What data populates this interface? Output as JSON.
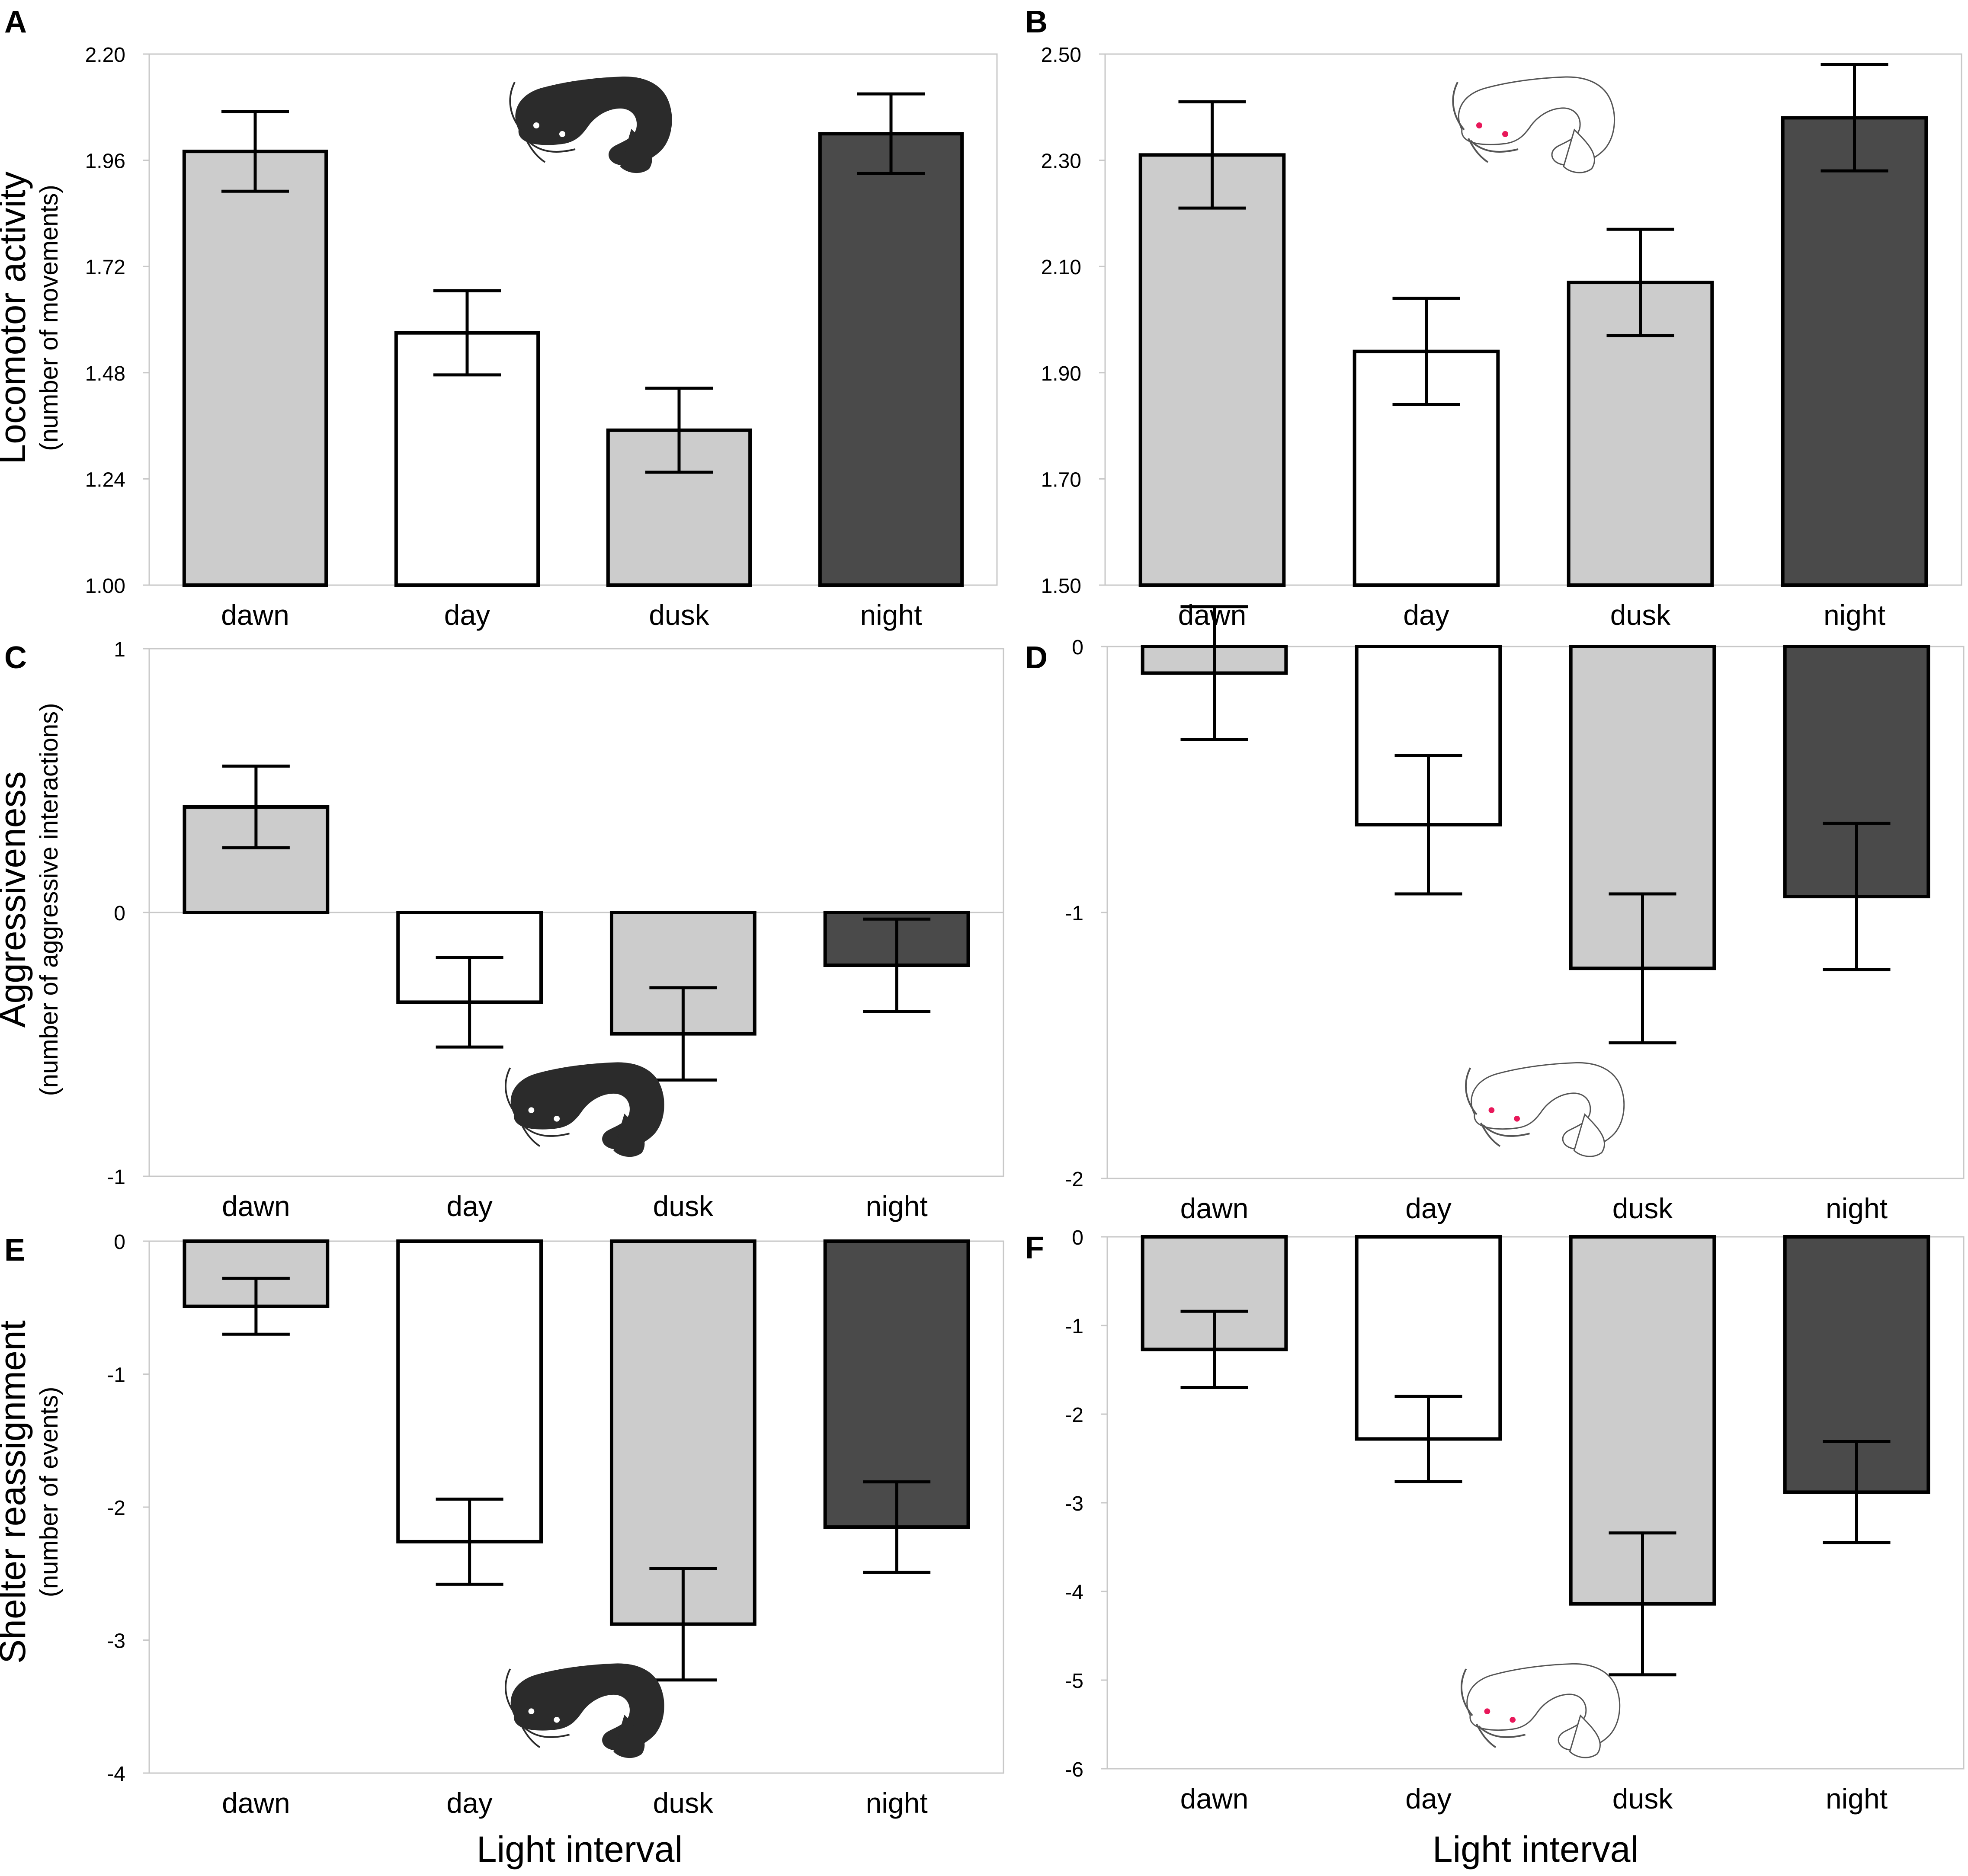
{
  "figure": {
    "shared_xlabel": "Light interval",
    "row_ylabels": [
      {
        "main": "Locomotor activity",
        "sub": "(number of movements)"
      },
      {
        "main": "Aggressiveness",
        "sub": "(number of aggressive interactions)"
      },
      {
        "main": "Shelter reassignment",
        "sub": "(number of events)"
      }
    ]
  },
  "colors": {
    "dawn": "#cccccc",
    "day": "#ffffff",
    "dusk": "#cccccc",
    "night": "#4a4a4a",
    "axis_frame": "#c8c8c8",
    "albino_eye": "#e8185a",
    "fish_dark": "#2b2b2b"
  },
  "chart_data": [
    {
      "panel": "A",
      "type": "bar",
      "categories": [
        "dawn",
        "day",
        "dusk",
        "night"
      ],
      "values": [
        1.98,
        1.57,
        1.35,
        2.02
      ],
      "errors": [
        0.09,
        0.095,
        0.095,
        0.09
      ],
      "ylim": [
        1.0,
        2.2
      ],
      "yticks": [
        1.0,
        1.24,
        1.48,
        1.72,
        1.96,
        2.2
      ],
      "ytick_labels": [
        "1.00",
        "1.24",
        "1.48",
        "1.72",
        "1.96",
        "2.20"
      ],
      "icon": "dark-catfish-icon"
    },
    {
      "panel": "B",
      "type": "bar",
      "categories": [
        "dawn",
        "day",
        "dusk",
        "night"
      ],
      "values": [
        2.31,
        1.94,
        2.07,
        2.38
      ],
      "errors": [
        0.1,
        0.1,
        0.1,
        0.1
      ],
      "ylim": [
        1.5,
        2.5
      ],
      "yticks": [
        1.5,
        1.7,
        1.9,
        2.1,
        2.3,
        2.5
      ],
      "ytick_labels": [
        "1.50",
        "1.70",
        "1.90",
        "2.10",
        "2.30",
        "2.50"
      ],
      "icon": "albino-catfish-icon"
    },
    {
      "panel": "C",
      "type": "bar",
      "categories": [
        "dawn",
        "day",
        "dusk",
        "night"
      ],
      "values": [
        0.4,
        -0.34,
        -0.46,
        -0.2
      ],
      "errors": [
        0.155,
        0.17,
        0.175,
        0.175
      ],
      "ylim": [
        -1,
        1
      ],
      "yticks": [
        -1,
        0,
        1
      ],
      "ytick_labels": [
        "-1",
        "0",
        "1"
      ],
      "icon": "dark-catfish-icon"
    },
    {
      "panel": "D",
      "type": "bar",
      "categories": [
        "dawn",
        "day",
        "dusk",
        "night"
      ],
      "values": [
        -0.1,
        -0.67,
        -1.21,
        -0.94
      ],
      "errors": [
        0.25,
        0.26,
        0.28,
        0.275
      ],
      "ylim": [
        -2,
        0
      ],
      "yticks": [
        -2,
        -1,
        0
      ],
      "ytick_labels": [
        "-2",
        "-1",
        "0"
      ],
      "icon": "albino-catfish-icon"
    },
    {
      "panel": "E",
      "type": "bar",
      "categories": [
        "dawn",
        "day",
        "dusk",
        "night"
      ],
      "values": [
        -0.49,
        -2.26,
        -2.88,
        -2.15
      ],
      "errors": [
        0.21,
        0.32,
        0.42,
        0.34
      ],
      "ylim": [
        -4,
        0
      ],
      "yticks": [
        -4,
        -3,
        -2,
        -1,
        0
      ],
      "ytick_labels": [
        "-4",
        "-3",
        "-2",
        "-1",
        "0"
      ],
      "icon": "dark-catfish-icon"
    },
    {
      "panel": "F",
      "type": "bar",
      "categories": [
        "dawn",
        "day",
        "dusk",
        "night"
      ],
      "values": [
        -1.27,
        -2.28,
        -4.14,
        -2.88
      ],
      "errors": [
        0.43,
        0.48,
        0.8,
        0.57
      ],
      "ylim": [
        -6,
        0
      ],
      "yticks": [
        -6,
        -5,
        -4,
        -3,
        -2,
        -1,
        0
      ],
      "ytick_labels": [
        "-6",
        "-5",
        "-4",
        "-3",
        "-2",
        "-1",
        "0"
      ],
      "icon": "albino-catfish-icon"
    }
  ]
}
